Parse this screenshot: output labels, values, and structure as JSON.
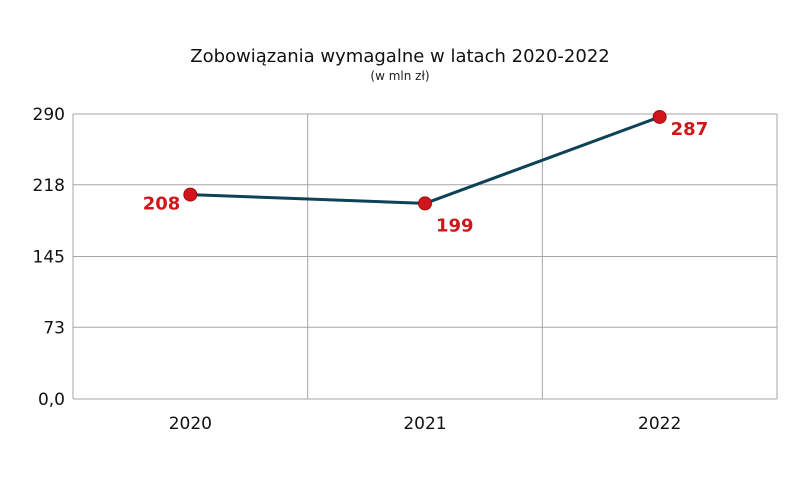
{
  "chart_data": {
    "type": "line",
    "title": "Zobowiązania wymagalne w latach 2020-2022",
    "subtitle": "(w mln zł)",
    "xlabel": "",
    "ylabel": "",
    "categories": [
      "2020",
      "2021",
      "2022"
    ],
    "series": [
      {
        "values": [
          208,
          199,
          287
        ],
        "data_labels": [
          "208",
          "199",
          "287"
        ]
      }
    ],
    "ylim": [
      0,
      290
    ],
    "yticks": [
      0,
      73,
      145,
      218,
      290
    ],
    "ytick_labels": [
      "0,0",
      "73",
      "145",
      "218",
      "290"
    ],
    "grid": true,
    "legend": "none",
    "colors": {
      "line": "#0d4257",
      "marker": "#d0161b",
      "label": "#d0161b",
      "grid": "#a6a6a6"
    }
  }
}
